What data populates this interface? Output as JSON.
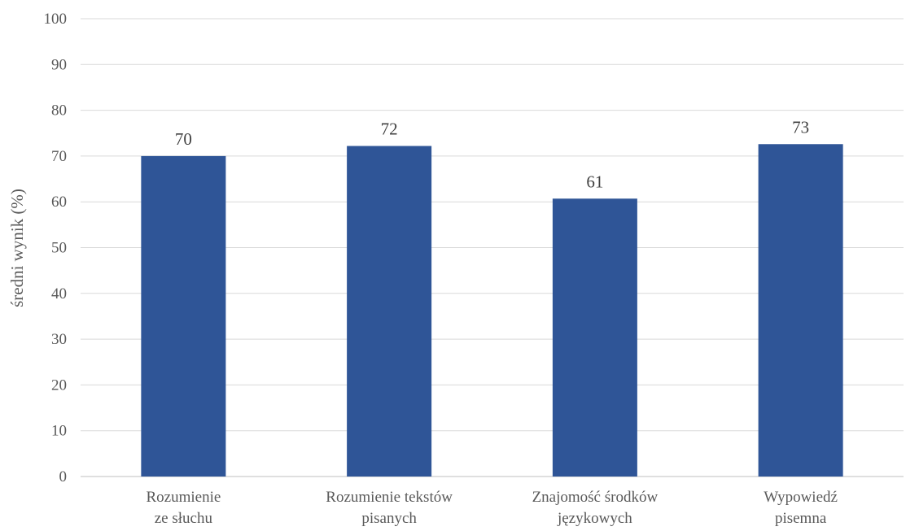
{
  "chart_data": {
    "type": "bar",
    "categories": [
      [
        "Rozumienie",
        "ze słuchu"
      ],
      [
        "Rozumienie tekstów",
        "pisanych"
      ],
      [
        "Znajomość środków",
        "językowych"
      ],
      [
        "Wypowiedź",
        "pisemna"
      ]
    ],
    "values": [
      70,
      72.2,
      60.7,
      72.6
    ],
    "data_labels": [
      "70",
      "72",
      "61",
      "73"
    ],
    "ylabel": "średni wynik (%)",
    "ylim": [
      0,
      100
    ],
    "yticks": [
      0,
      10,
      20,
      30,
      40,
      50,
      60,
      70,
      80,
      90,
      100
    ],
    "grid": true,
    "legend": "none",
    "bar_color": "#2f5597"
  }
}
